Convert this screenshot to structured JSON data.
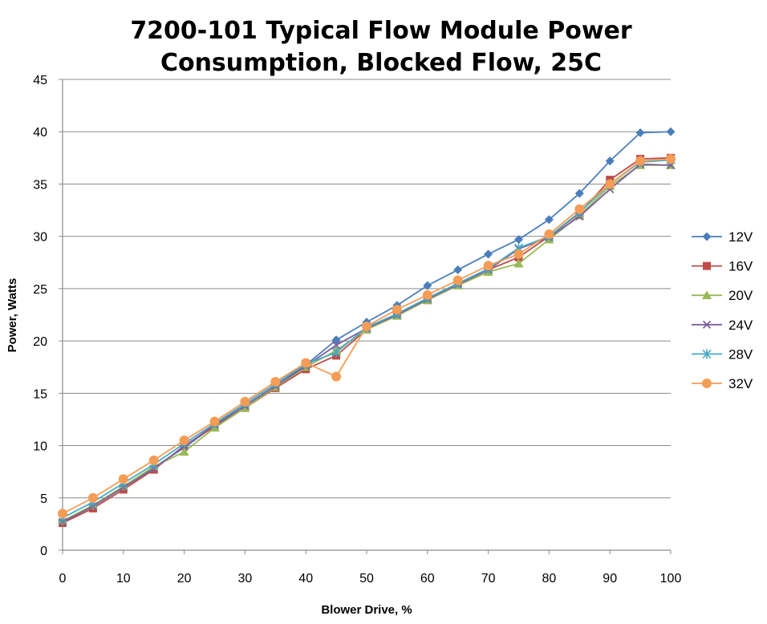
{
  "chart_data": {
    "type": "line",
    "title_lines": [
      "7200-101 Typical Flow Module Power",
      "Consumption, Blocked Flow, 25C"
    ],
    "xlabel": "Blower Drive, %",
    "ylabel": "Power, Watts",
    "xlim": [
      0,
      100
    ],
    "ylim": [
      0,
      45
    ],
    "x_ticks": [
      0,
      10,
      20,
      30,
      40,
      50,
      60,
      70,
      80,
      90,
      100
    ],
    "y_ticks": [
      0,
      5,
      10,
      15,
      20,
      25,
      30,
      35,
      40,
      45
    ],
    "grid": "horizontal",
    "legend_position": "right",
    "x": [
      0,
      5,
      10,
      15,
      20,
      25,
      30,
      35,
      40,
      45,
      50,
      55,
      60,
      65,
      70,
      75,
      80,
      85,
      90,
      95,
      100
    ],
    "series": [
      {
        "name": "12V",
        "color": "#4a7ebb",
        "marker": "diamond",
        "values": [
          2.7,
          4.2,
          6.0,
          7.9,
          9.8,
          11.9,
          13.8,
          15.7,
          17.7,
          20.1,
          21.8,
          23.4,
          25.3,
          26.8,
          28.3,
          29.7,
          31.6,
          34.1,
          37.2,
          39.9,
          40.0
        ]
      },
      {
        "name": "16V",
        "color": "#be4b48",
        "marker": "square",
        "values": [
          2.6,
          4.0,
          5.8,
          7.7,
          10.0,
          11.8,
          13.6,
          15.5,
          17.3,
          18.6,
          21.1,
          22.5,
          23.9,
          25.4,
          26.8,
          28.0,
          30.0,
          32.2,
          35.4,
          37.4,
          37.5
        ]
      },
      {
        "name": "20V",
        "color": "#98b954",
        "marker": "triangle",
        "values": [
          2.8,
          4.3,
          6.1,
          8.0,
          9.4,
          11.7,
          13.6,
          15.6,
          17.5,
          19.1,
          21.1,
          22.4,
          23.9,
          25.3,
          26.6,
          27.4,
          29.7,
          32.0,
          34.8,
          36.8,
          36.8
        ]
      },
      {
        "name": "24V",
        "color": "#7d60a0",
        "marker": "x",
        "values": [
          2.7,
          4.2,
          6.0,
          7.8,
          9.9,
          12.0,
          13.8,
          15.7,
          17.6,
          19.6,
          21.2,
          22.5,
          24.0,
          25.4,
          26.8,
          28.8,
          29.9,
          31.9,
          34.5,
          36.9,
          36.8
        ]
      },
      {
        "name": "28V",
        "color": "#46aac4",
        "marker": "star",
        "values": [
          3.1,
          4.6,
          6.4,
          8.2,
          10.2,
          12.1,
          14.0,
          15.9,
          17.8,
          18.9,
          21.3,
          22.6,
          24.1,
          25.5,
          26.9,
          28.9,
          30.0,
          32.3,
          35.0,
          37.1,
          37.3
        ]
      },
      {
        "name": "32V",
        "color": "#f59d56",
        "marker": "circle",
        "values": [
          3.5,
          5.0,
          6.8,
          8.6,
          10.5,
          12.3,
          14.2,
          16.1,
          17.9,
          16.6,
          21.4,
          23.0,
          24.4,
          25.8,
          27.2,
          28.3,
          30.2,
          32.6,
          35.0,
          37.2,
          37.4
        ]
      }
    ]
  }
}
